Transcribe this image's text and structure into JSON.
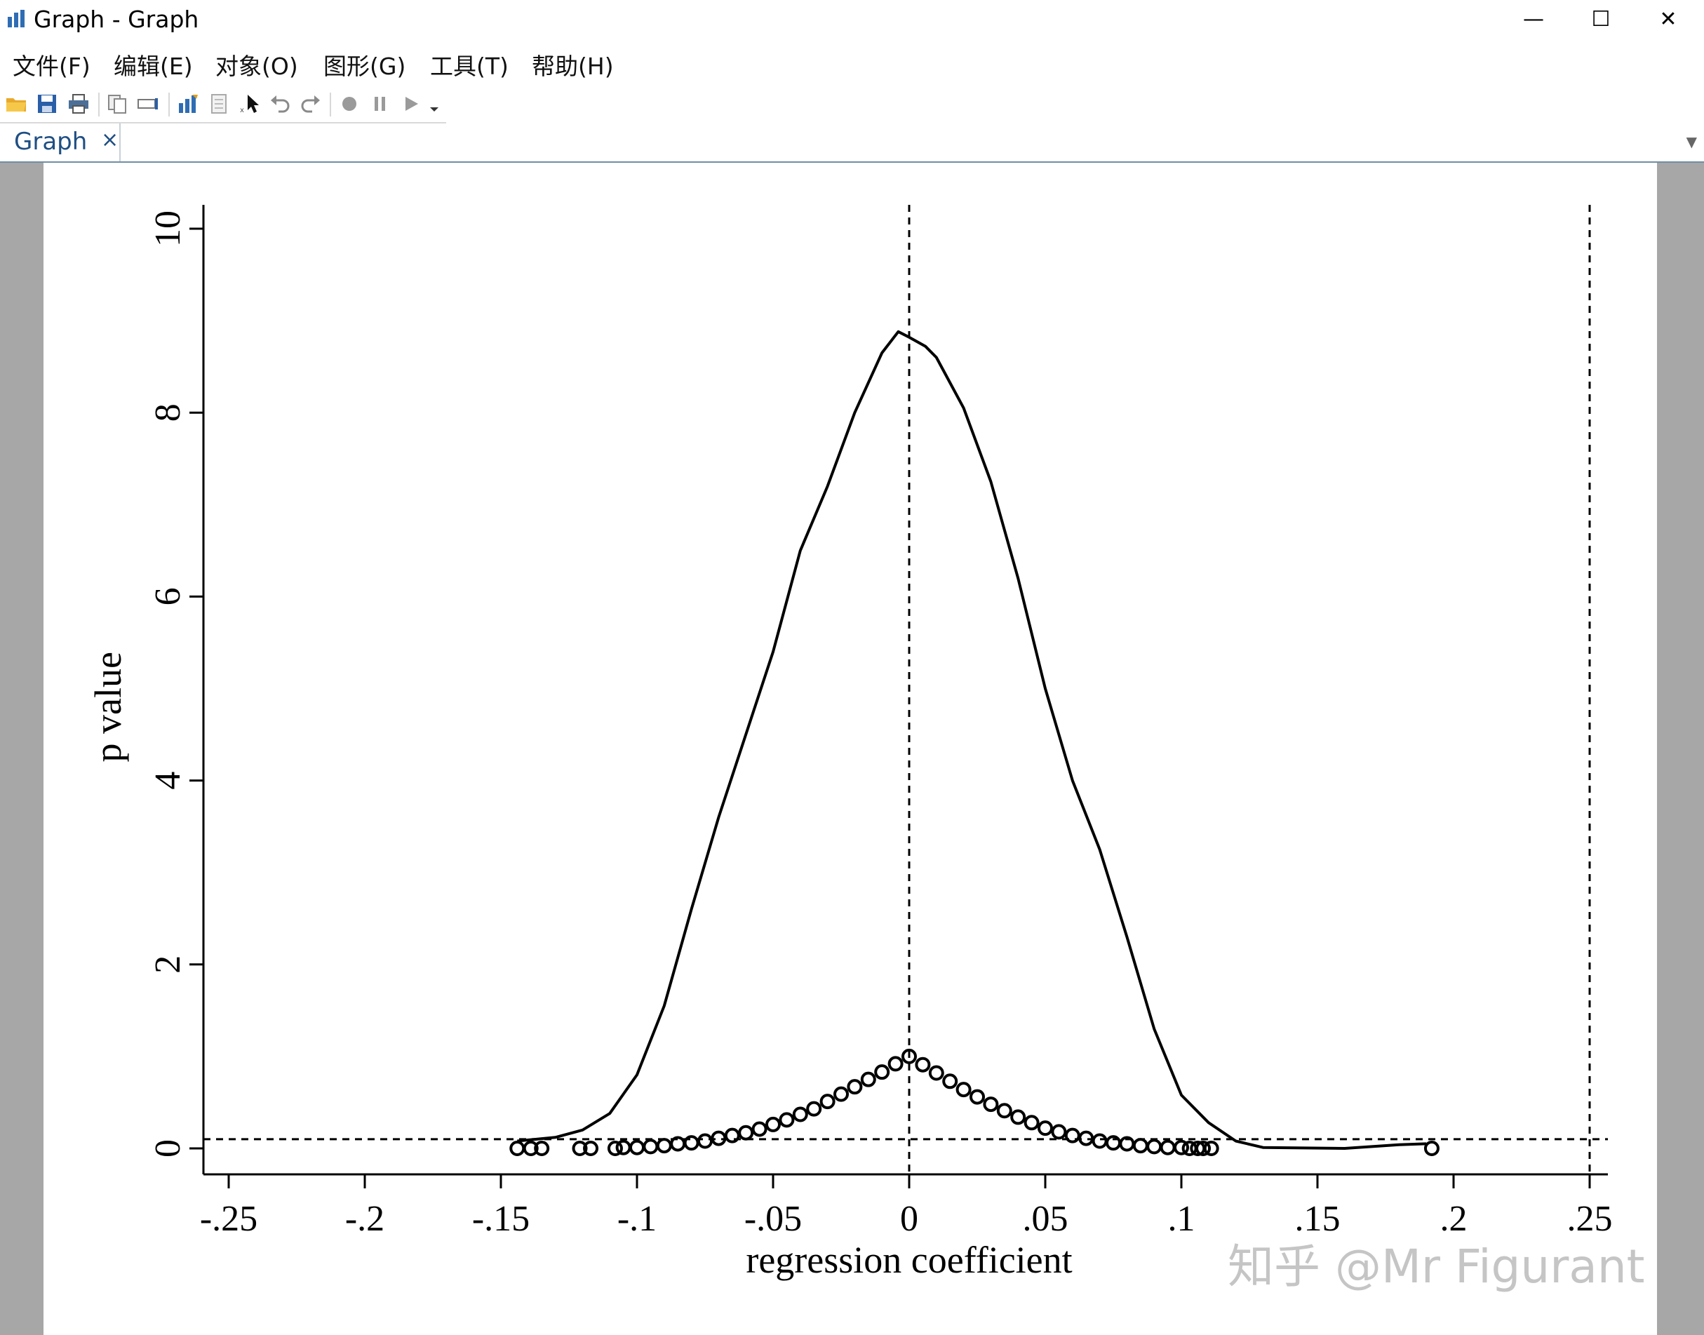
{
  "window": {
    "title": "Graph - Graph",
    "controls": {
      "minimize": "—",
      "maximize": "☐",
      "close": "✕"
    }
  },
  "menu": {
    "items": [
      "文件(F)",
      "编辑(E)",
      "对象(O)",
      "图形(G)",
      "工具(T)",
      "帮助(H)"
    ]
  },
  "toolbar": {
    "icons": [
      "open-folder-icon",
      "save-icon",
      "print-icon",
      "copy-icon",
      "rename-icon",
      "graph-editor-icon",
      "data-editor-icon",
      "pointer-icon",
      "undo-icon",
      "redo-icon",
      "record-icon",
      "pause-icon",
      "play-icon",
      "dropdown-icon"
    ]
  },
  "tab": {
    "label": "Graph",
    "close": "×"
  },
  "watermark": "知乎 @Mr Figurant",
  "chart_data": {
    "type": "scatter",
    "xlabel": "regression coefficient",
    "ylabel": "p value",
    "xlim": [
      -0.25,
      0.25
    ],
    "ylim": [
      0,
      10
    ],
    "xticks": [
      -0.25,
      -0.2,
      -0.15,
      -0.1,
      -0.05,
      0,
      0.05,
      0.1,
      0.15,
      0.2,
      0.25
    ],
    "xtick_labels": [
      "-.25",
      "-.2",
      "-.15",
      "-.1",
      "-.05",
      "0",
      ".05",
      ".1",
      ".15",
      ".2",
      ".25"
    ],
    "yticks": [
      0,
      2,
      4,
      6,
      8,
      10
    ],
    "ytick_labels": [
      "0",
      "2",
      "4",
      "6",
      "8",
      "10"
    ],
    "reference_lines": {
      "vertical": [
        0,
        0.25
      ],
      "horizontal": [
        0.1
      ],
      "style": "dashed"
    },
    "grid": false,
    "series": [
      {
        "type": "line",
        "points": [
          [
            -0.144,
            0.08
          ],
          [
            -0.13,
            0.12
          ],
          [
            -0.12,
            0.2
          ],
          [
            -0.11,
            0.38
          ],
          [
            -0.1,
            0.8
          ],
          [
            -0.09,
            1.55
          ],
          [
            -0.08,
            2.6
          ],
          [
            -0.07,
            3.6
          ],
          [
            -0.06,
            4.5
          ],
          [
            -0.05,
            5.4
          ],
          [
            -0.04,
            6.5
          ],
          [
            -0.03,
            7.2
          ],
          [
            -0.02,
            8.0
          ],
          [
            -0.01,
            8.65
          ],
          [
            -0.004,
            8.88
          ],
          [
            0,
            8.82
          ],
          [
            0.006,
            8.72
          ],
          [
            0.01,
            8.6
          ],
          [
            0.02,
            8.05
          ],
          [
            0.03,
            7.25
          ],
          [
            0.04,
            6.2
          ],
          [
            0.05,
            5.0
          ],
          [
            0.06,
            4.0
          ],
          [
            0.07,
            3.25
          ],
          [
            0.08,
            2.3
          ],
          [
            0.09,
            1.3
          ],
          [
            0.1,
            0.58
          ],
          [
            0.11,
            0.28
          ],
          [
            0.12,
            0.08
          ],
          [
            0.13,
            0.01
          ],
          [
            0.16,
            0.0
          ],
          [
            0.17,
            0.02
          ],
          [
            0.18,
            0.04
          ],
          [
            0.19,
            0.05
          ]
        ]
      },
      {
        "type": "scatter",
        "marker": "hollow-circle",
        "points": [
          [
            -0.144,
            0.0
          ],
          [
            -0.139,
            0.0
          ],
          [
            -0.135,
            0.0
          ],
          [
            -0.121,
            0.0
          ],
          [
            -0.117,
            0.0
          ],
          [
            -0.108,
            0.0
          ],
          [
            -0.105,
            0.01
          ],
          [
            -0.1,
            0.01
          ],
          [
            -0.095,
            0.02
          ],
          [
            -0.09,
            0.03
          ],
          [
            -0.085,
            0.05
          ],
          [
            -0.08,
            0.06
          ],
          [
            -0.075,
            0.08
          ],
          [
            -0.07,
            0.11
          ],
          [
            -0.065,
            0.14
          ],
          [
            -0.06,
            0.17
          ],
          [
            -0.055,
            0.21
          ],
          [
            -0.05,
            0.26
          ],
          [
            -0.045,
            0.31
          ],
          [
            -0.04,
            0.37
          ],
          [
            -0.035,
            0.43
          ],
          [
            -0.03,
            0.51
          ],
          [
            -0.025,
            0.59
          ],
          [
            -0.02,
            0.67
          ],
          [
            -0.015,
            0.75
          ],
          [
            -0.01,
            0.83
          ],
          [
            -0.005,
            0.92
          ],
          [
            0.0,
            1.0
          ],
          [
            0.005,
            0.91
          ],
          [
            0.01,
            0.82
          ],
          [
            0.015,
            0.73
          ],
          [
            0.02,
            0.64
          ],
          [
            0.025,
            0.56
          ],
          [
            0.03,
            0.48
          ],
          [
            0.035,
            0.41
          ],
          [
            0.04,
            0.34
          ],
          [
            0.045,
            0.28
          ],
          [
            0.05,
            0.22
          ],
          [
            0.055,
            0.18
          ],
          [
            0.06,
            0.14
          ],
          [
            0.065,
            0.11
          ],
          [
            0.07,
            0.08
          ],
          [
            0.075,
            0.06
          ],
          [
            0.08,
            0.05
          ],
          [
            0.085,
            0.03
          ],
          [
            0.09,
            0.02
          ],
          [
            0.095,
            0.01
          ],
          [
            0.1,
            0.01
          ],
          [
            0.103,
            0.0
          ],
          [
            0.106,
            0.0
          ],
          [
            0.108,
            0.0
          ],
          [
            0.111,
            0.0
          ],
          [
            0.192,
            0.0
          ]
        ]
      }
    ]
  }
}
